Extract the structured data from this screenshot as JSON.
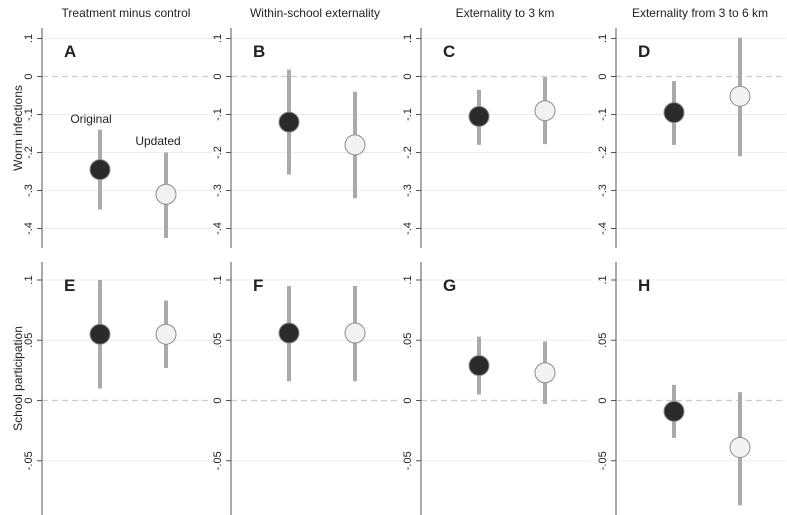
{
  "chart_data": {
    "type": "scatter",
    "subtype": "point-estimate-with-confidence-interval",
    "grid": true,
    "columns": [
      "Treatment minus control",
      "Within-school externality",
      "Externality to 3 km",
      "Externality from 3 to 6 km"
    ],
    "rows": [
      {
        "ylabel": "Worm infections",
        "ylim": [
          -0.45,
          0.1
        ],
        "ticks": [
          0.1,
          0,
          -0.1,
          -0.2,
          -0.3,
          -0.4
        ],
        "tick_labels": [
          ".1",
          "0",
          "-.1",
          "-.2",
          "-.3",
          "-.4"
        ],
        "panels": [
          {
            "letter": "A",
            "points": [
              {
                "series": "Original",
                "estimate": -0.245,
                "ci": [
                  -0.35,
                  -0.14
                ]
              },
              {
                "series": "Updated",
                "estimate": -0.31,
                "ci": [
                  -0.425,
                  -0.2
                ]
              }
            ]
          },
          {
            "letter": "B",
            "points": [
              {
                "series": "Original",
                "estimate": -0.12,
                "ci": [
                  -0.258,
                  0.018
                ]
              },
              {
                "series": "Updated",
                "estimate": -0.18,
                "ci": [
                  -0.32,
                  -0.04
                ]
              }
            ]
          },
          {
            "letter": "C",
            "points": [
              {
                "series": "Original",
                "estimate": -0.105,
                "ci": [
                  -0.18,
                  -0.035
                ]
              },
              {
                "series": "Updated",
                "estimate": -0.09,
                "ci": [
                  -0.178,
                  -0.002
                ]
              }
            ]
          },
          {
            "letter": "D",
            "points": [
              {
                "series": "Original",
                "estimate": -0.095,
                "ci": [
                  -0.18,
                  -0.012
                ]
              },
              {
                "series": "Updated",
                "estimate": -0.052,
                "ci": [
                  -0.21,
                  0.102
                ]
              }
            ]
          }
        ]
      },
      {
        "ylabel": "School participation",
        "ylim": [
          -0.1,
          0.12
        ],
        "ticks": [
          0.1,
          0.05,
          0,
          -0.05
        ],
        "tick_labels": [
          ".1",
          ".05",
          "0",
          "-.05"
        ],
        "panels": [
          {
            "letter": "E",
            "points": [
              {
                "series": "Original",
                "estimate": 0.055,
                "ci": [
                  0.01,
                  0.1
                ]
              },
              {
                "series": "Updated",
                "estimate": 0.055,
                "ci": [
                  0.027,
                  0.083
                ]
              }
            ]
          },
          {
            "letter": "F",
            "points": [
              {
                "series": "Original",
                "estimate": 0.056,
                "ci": [
                  0.016,
                  0.095
                ]
              },
              {
                "series": "Updated",
                "estimate": 0.056,
                "ci": [
                  0.016,
                  0.095
                ]
              }
            ]
          },
          {
            "letter": "G",
            "points": [
              {
                "series": "Original",
                "estimate": 0.029,
                "ci": [
                  0.005,
                  0.053
                ]
              },
              {
                "series": "Updated",
                "estimate": 0.023,
                "ci": [
                  -0.003,
                  0.049
                ]
              }
            ]
          },
          {
            "letter": "H",
            "points": [
              {
                "series": "Original",
                "estimate": -0.009,
                "ci": [
                  -0.031,
                  0.013
                ]
              },
              {
                "series": "Updated",
                "estimate": -0.039,
                "ci": [
                  -0.087,
                  0.007
                ]
              }
            ]
          }
        ]
      }
    ],
    "annotations": {
      "original": "Original",
      "updated": "Updated"
    },
    "colors": {
      "original_fill": "#2b2b2b",
      "updated_fill": "#f2f2f2",
      "marker_stroke": "#8c8c8c",
      "ci_line": "#aaaaaa",
      "zero_line": "#cccccc",
      "grid": "#ececec",
      "axis": "#555555"
    }
  }
}
